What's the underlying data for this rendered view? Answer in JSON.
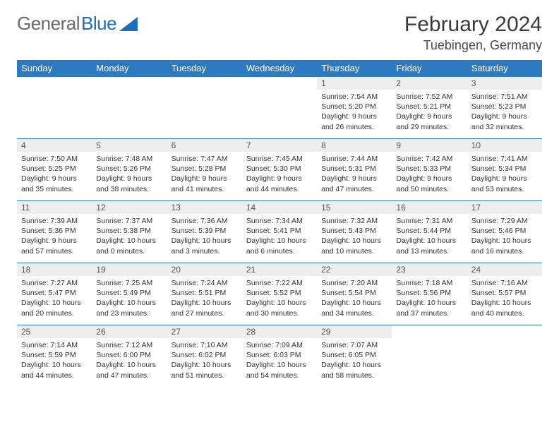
{
  "brand": {
    "part1": "General",
    "part2": "Blue"
  },
  "title": "February 2024",
  "location": "Tuebingen, Germany",
  "colors": {
    "header_bg": "#2e7ac0",
    "header_text": "#ffffff",
    "daynum_bg": "#eeeeee",
    "row_border": "#2e7ac0",
    "brand_gray": "#6a6a6a",
    "brand_blue": "#1f6db5"
  },
  "weekdays": [
    "Sunday",
    "Monday",
    "Tuesday",
    "Wednesday",
    "Thursday",
    "Friday",
    "Saturday"
  ],
  "days": {
    "1": {
      "sunrise": "7:54 AM",
      "sunset": "5:20 PM",
      "daylight": "9 hours and 26 minutes."
    },
    "2": {
      "sunrise": "7:52 AM",
      "sunset": "5:21 PM",
      "daylight": "9 hours and 29 minutes."
    },
    "3": {
      "sunrise": "7:51 AM",
      "sunset": "5:23 PM",
      "daylight": "9 hours and 32 minutes."
    },
    "4": {
      "sunrise": "7:50 AM",
      "sunset": "5:25 PM",
      "daylight": "9 hours and 35 minutes."
    },
    "5": {
      "sunrise": "7:48 AM",
      "sunset": "5:26 PM",
      "daylight": "9 hours and 38 minutes."
    },
    "6": {
      "sunrise": "7:47 AM",
      "sunset": "5:28 PM",
      "daylight": "9 hours and 41 minutes."
    },
    "7": {
      "sunrise": "7:45 AM",
      "sunset": "5:30 PM",
      "daylight": "9 hours and 44 minutes."
    },
    "8": {
      "sunrise": "7:44 AM",
      "sunset": "5:31 PM",
      "daylight": "9 hours and 47 minutes."
    },
    "9": {
      "sunrise": "7:42 AM",
      "sunset": "5:33 PM",
      "daylight": "9 hours and 50 minutes."
    },
    "10": {
      "sunrise": "7:41 AM",
      "sunset": "5:34 PM",
      "daylight": "9 hours and 53 minutes."
    },
    "11": {
      "sunrise": "7:39 AM",
      "sunset": "5:36 PM",
      "daylight": "9 hours and 57 minutes."
    },
    "12": {
      "sunrise": "7:37 AM",
      "sunset": "5:38 PM",
      "daylight": "10 hours and 0 minutes."
    },
    "13": {
      "sunrise": "7:36 AM",
      "sunset": "5:39 PM",
      "daylight": "10 hours and 3 minutes."
    },
    "14": {
      "sunrise": "7:34 AM",
      "sunset": "5:41 PM",
      "daylight": "10 hours and 6 minutes."
    },
    "15": {
      "sunrise": "7:32 AM",
      "sunset": "5:43 PM",
      "daylight": "10 hours and 10 minutes."
    },
    "16": {
      "sunrise": "7:31 AM",
      "sunset": "5:44 PM",
      "daylight": "10 hours and 13 minutes."
    },
    "17": {
      "sunrise": "7:29 AM",
      "sunset": "5:46 PM",
      "daylight": "10 hours and 16 minutes."
    },
    "18": {
      "sunrise": "7:27 AM",
      "sunset": "5:47 PM",
      "daylight": "10 hours and 20 minutes."
    },
    "19": {
      "sunrise": "7:25 AM",
      "sunset": "5:49 PM",
      "daylight": "10 hours and 23 minutes."
    },
    "20": {
      "sunrise": "7:24 AM",
      "sunset": "5:51 PM",
      "daylight": "10 hours and 27 minutes."
    },
    "21": {
      "sunrise": "7:22 AM",
      "sunset": "5:52 PM",
      "daylight": "10 hours and 30 minutes."
    },
    "22": {
      "sunrise": "7:20 AM",
      "sunset": "5:54 PM",
      "daylight": "10 hours and 34 minutes."
    },
    "23": {
      "sunrise": "7:18 AM",
      "sunset": "5:56 PM",
      "daylight": "10 hours and 37 minutes."
    },
    "24": {
      "sunrise": "7:16 AM",
      "sunset": "5:57 PM",
      "daylight": "10 hours and 40 minutes."
    },
    "25": {
      "sunrise": "7:14 AM",
      "sunset": "5:59 PM",
      "daylight": "10 hours and 44 minutes."
    },
    "26": {
      "sunrise": "7:12 AM",
      "sunset": "6:00 PM",
      "daylight": "10 hours and 47 minutes."
    },
    "27": {
      "sunrise": "7:10 AM",
      "sunset": "6:02 PM",
      "daylight": "10 hours and 51 minutes."
    },
    "28": {
      "sunrise": "7:09 AM",
      "sunset": "6:03 PM",
      "daylight": "10 hours and 54 minutes."
    },
    "29": {
      "sunrise": "7:07 AM",
      "sunset": "6:05 PM",
      "daylight": "10 hours and 58 minutes."
    }
  },
  "layout": [
    [
      null,
      null,
      null,
      null,
      "1",
      "2",
      "3"
    ],
    [
      "4",
      "5",
      "6",
      "7",
      "8",
      "9",
      "10"
    ],
    [
      "11",
      "12",
      "13",
      "14",
      "15",
      "16",
      "17"
    ],
    [
      "18",
      "19",
      "20",
      "21",
      "22",
      "23",
      "24"
    ],
    [
      "25",
      "26",
      "27",
      "28",
      "29",
      null,
      null
    ]
  ],
  "labels": {
    "sunrise": "Sunrise: ",
    "sunset": "Sunset: ",
    "daylight": "Daylight: "
  }
}
